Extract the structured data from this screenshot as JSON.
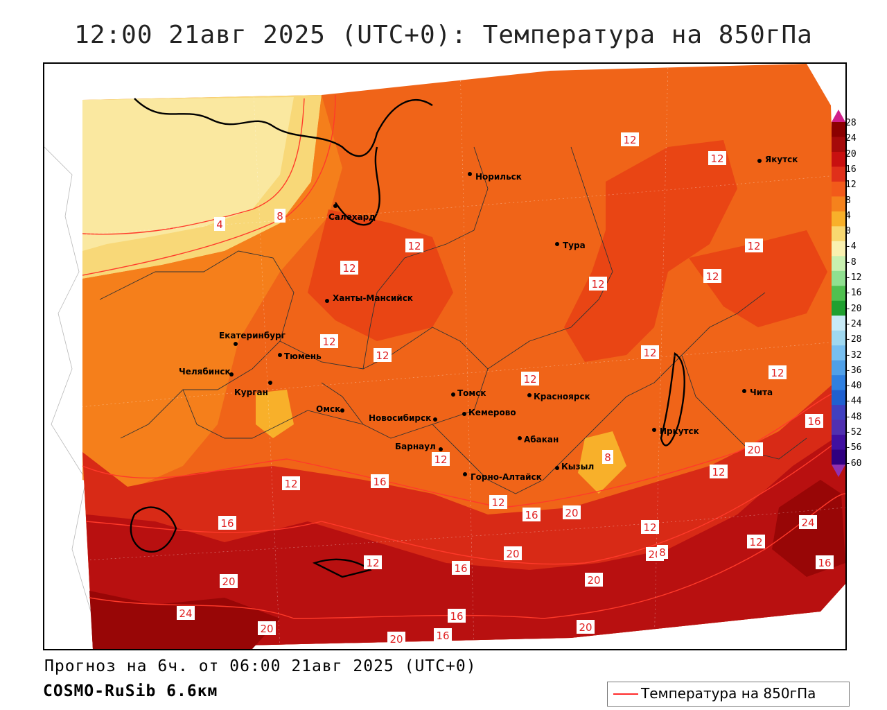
{
  "title": "12:00 21авг 2025 (UTC+0): Температура на 850гПа",
  "forecast_text": "Прогноз на 6ч. от 06:00 21авг 2025 (UTC+0)",
  "model_text": "COSMO-RuSib 6.6км",
  "legend": {
    "label": "Температура на 850гПа",
    "line_color": "#ff2a2a"
  },
  "colorbar": {
    "labels": [
      "28",
      "24",
      "20",
      "16",
      "12",
      "8",
      "4",
      "0",
      "-4",
      "-8",
      "-12",
      "-16",
      "-20",
      "-24",
      "-28",
      "-32",
      "-36",
      "-40",
      "-44",
      "-48",
      "-52",
      "-56",
      "-60"
    ],
    "colors": [
      "#8b0000",
      "#a50a0a",
      "#c81010",
      "#e0301a",
      "#f25a1a",
      "#f5821c",
      "#f8b02a",
      "#f8d870",
      "#f9f0b0",
      "#c8f0b0",
      "#90e090",
      "#50c050",
      "#20a030",
      "#c8eaf6",
      "#a0d8f0",
      "#78bff0",
      "#50a0e8",
      "#3080e0",
      "#2060d0",
      "#4040c0",
      "#5030b0",
      "#4010a0",
      "#300080"
    ],
    "top_arrow_color": "#d0208a",
    "bottom_arrow_color": "#9030b0"
  },
  "cities": [
    {
      "name": "Салехард"
    },
    {
      "name": "Норильск"
    },
    {
      "name": "Якутск"
    },
    {
      "name": "Тура"
    },
    {
      "name": "Ханты-Мансийск"
    },
    {
      "name": "Екатеринбург"
    },
    {
      "name": "Тюмень"
    },
    {
      "name": "Челябинск"
    },
    {
      "name": "Курган"
    },
    {
      "name": "Омск"
    },
    {
      "name": "Новосибирск"
    },
    {
      "name": "Томск"
    },
    {
      "name": "Кемерово"
    },
    {
      "name": "Красноярск"
    },
    {
      "name": "Абакан"
    },
    {
      "name": "Барнаул"
    },
    {
      "name": "Горно-Алтайск"
    },
    {
      "name": "Кызыл"
    },
    {
      "name": "Иркутск"
    },
    {
      "name": "Чита"
    }
  ],
  "isotherm_labels": [
    "12",
    "12",
    "4",
    "8",
    "12",
    "12",
    "12",
    "12",
    "12",
    "12",
    "12",
    "12",
    "12",
    "12",
    "8",
    "12",
    "12",
    "16",
    "16",
    "20",
    "12",
    "16",
    "12",
    "16",
    "20",
    "12",
    "12",
    "12",
    "20",
    "16",
    "24",
    "20",
    "20",
    "20",
    "16",
    "20",
    "24",
    "20",
    "16",
    "20",
    "16",
    "8"
  ]
}
